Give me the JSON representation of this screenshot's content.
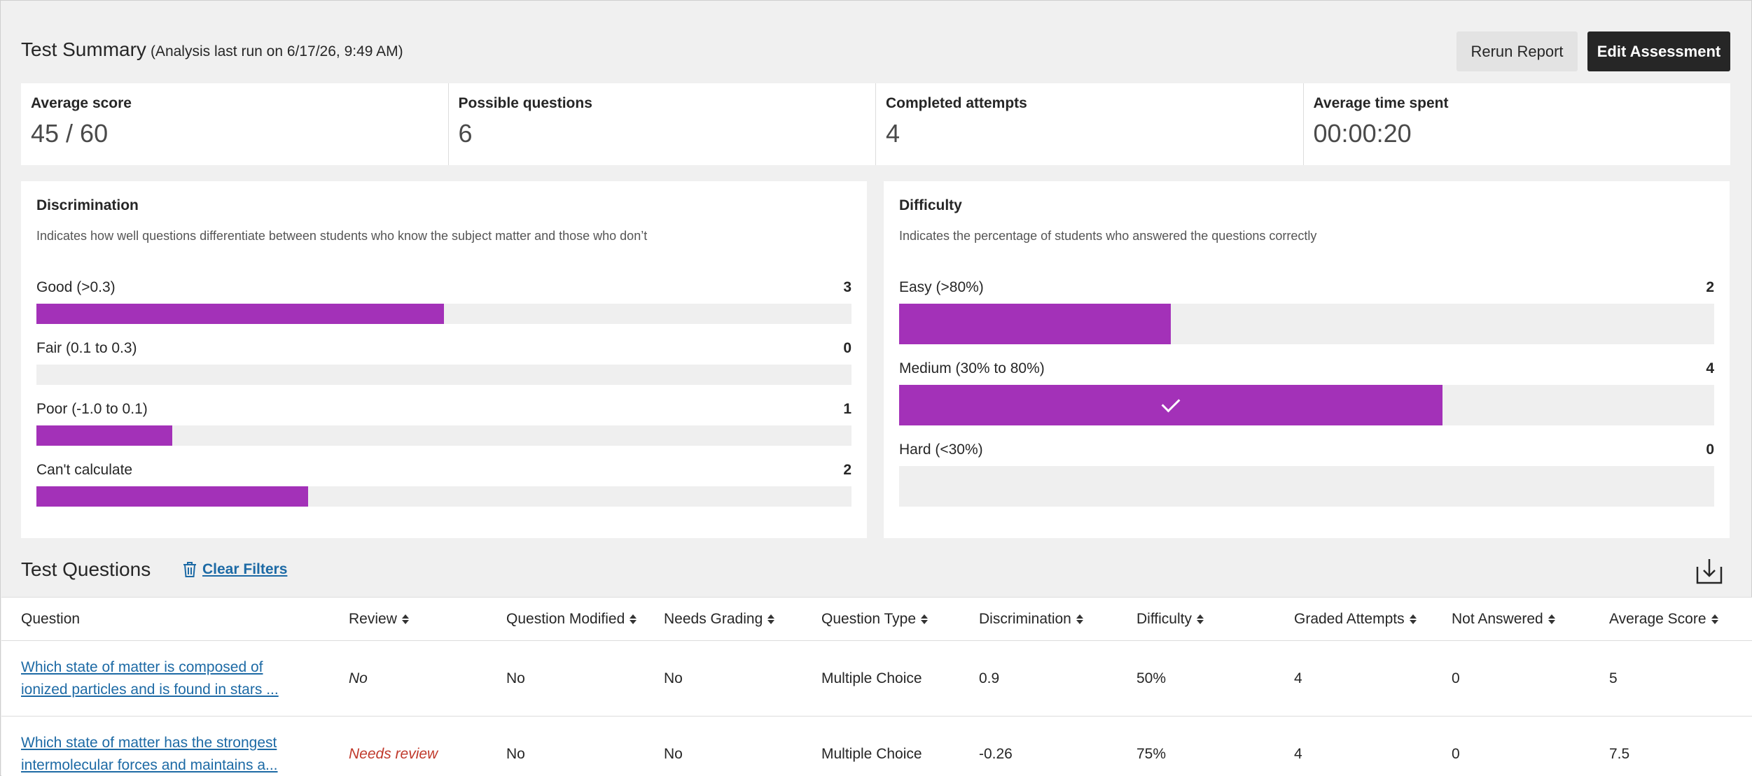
{
  "header": {
    "title": "Test Summary",
    "subtitle": "(Analysis last run on 6/17/26, 9:49 AM)",
    "rerun_label": "Rerun Report",
    "edit_label": "Edit Assessment"
  },
  "stats": [
    {
      "label": "Average score",
      "value": "45 / 60"
    },
    {
      "label": "Possible questions",
      "value": "6"
    },
    {
      "label": "Completed attempts",
      "value": "4"
    },
    {
      "label": "Average time spent",
      "value": "00:00:20"
    }
  ],
  "discrimination": {
    "title": "Discrimination",
    "description": "Indicates how well questions differentiate between students who know the subject matter and those who don’t",
    "max": 6,
    "items": [
      {
        "label": "Good (>0.3)",
        "count": 3
      },
      {
        "label": "Fair (0.1 to 0.3)",
        "count": 0
      },
      {
        "label": "Poor (-1.0 to 0.1)",
        "count": 1
      },
      {
        "label": "Can't calculate",
        "count": 2
      }
    ]
  },
  "difficulty": {
    "title": "Difficulty",
    "description": "Indicates the percentage of students who answered the questions correctly",
    "max": 6,
    "items": [
      {
        "label": "Easy (>80%)",
        "count": 2,
        "selected": false
      },
      {
        "label": "Medium (30% to 80%)",
        "count": 4,
        "selected": true
      },
      {
        "label": "Hard (<30%)",
        "count": 0,
        "selected": false
      }
    ]
  },
  "questions": {
    "title": "Test Questions",
    "clear_filters": "Clear Filters",
    "columns": [
      "Question",
      "Review",
      "Question Modified",
      "Needs Grading",
      "Question Type",
      "Discrimination",
      "Difficulty",
      "Graded Attempts",
      "Not Answered",
      "Average Score"
    ],
    "rows": [
      {
        "question": "Which state of matter is composed of ionized particles and is found in stars ...",
        "review": "No",
        "modified": "No",
        "needs_grading": "No",
        "type": "Multiple Choice",
        "discrimination": "0.9",
        "difficulty": "50%",
        "graded_attempts": "4",
        "not_answered": "0",
        "average_score": "5"
      },
      {
        "question": "Which state of matter has the strongest intermolecular forces and maintains a...",
        "review": "Needs review",
        "modified": "No",
        "needs_grading": "No",
        "type": "Multiple Choice",
        "discrimination": "-0.26",
        "difficulty": "75%",
        "graded_attempts": "4",
        "not_answered": "0",
        "average_score": "7.5"
      }
    ]
  },
  "colors": {
    "accent": "#a331b8",
    "link": "#1d6aa5",
    "needs_review": "#c0392b",
    "dark_button": "#262626"
  }
}
